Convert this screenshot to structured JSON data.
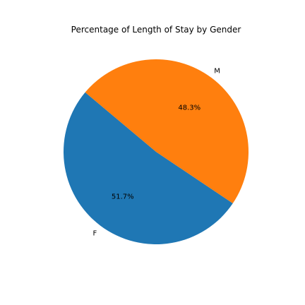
{
  "chart_data": {
    "type": "pie",
    "title": "Percentage of Length of Stay by Gender",
    "slices": [
      {
        "label": "F",
        "value": 51.7,
        "pct_label": "51.7%",
        "color": "#1f77b4"
      },
      {
        "label": "M",
        "value": 48.3,
        "pct_label": "48.3%",
        "color": "#ff7f0e"
      }
    ],
    "start_angle_deg": 140,
    "direction": "counterclockwise"
  }
}
